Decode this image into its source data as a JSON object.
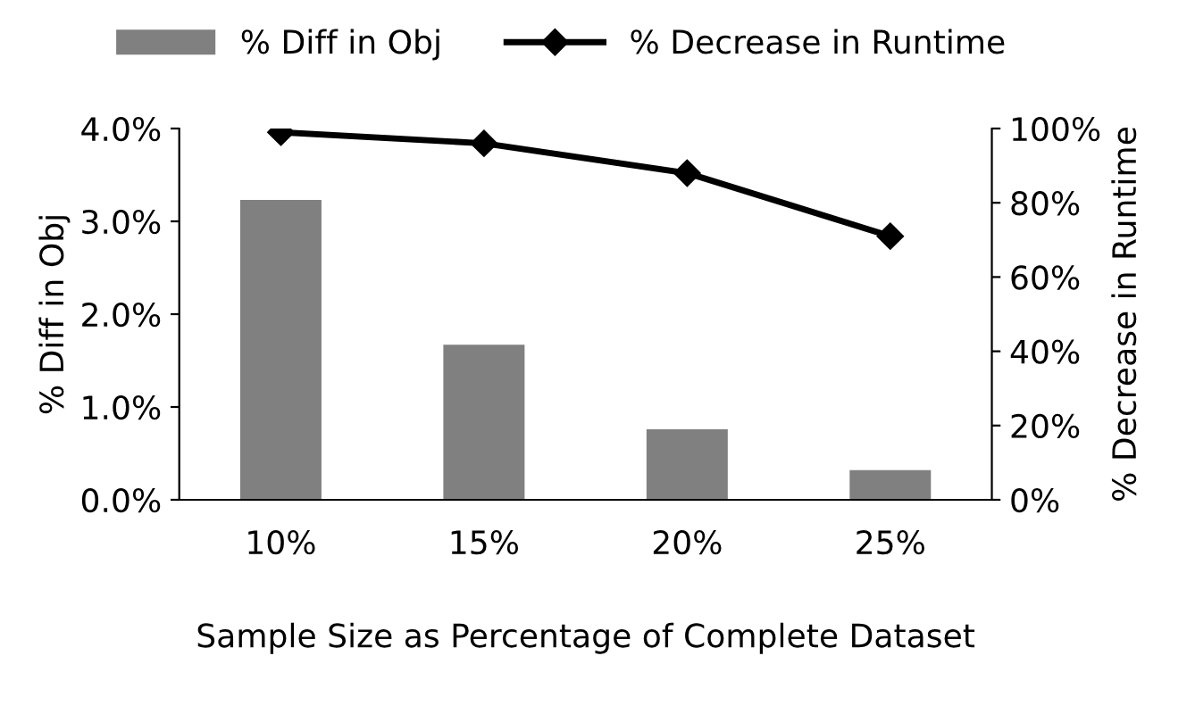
{
  "chart_data": {
    "type": "bar",
    "xlabel": "Sample Size as Percentage of Complete Dataset",
    "ylabel": "% Diff in Obj",
    "y2label": "% Decrease in Runtime",
    "categories": [
      "10%",
      "15%",
      "20%",
      "25%"
    ],
    "series": [
      {
        "name": "% Diff in Obj",
        "color": "#808080",
        "values": [
          3.23,
          1.67,
          0.76,
          0.32
        ]
      },
      {
        "name": "% Decrease in Runtime",
        "type": "line",
        "axis": "y2",
        "color": "#000000",
        "marker": "diamond",
        "values": [
          99,
          96,
          88,
          71
        ]
      }
    ],
    "ylim": [
      0,
      4
    ],
    "yticks": [
      {
        "value": 0,
        "label": "0.0%"
      },
      {
        "value": 1,
        "label": "1.0%"
      },
      {
        "value": 2,
        "label": "2.0%"
      },
      {
        "value": 3,
        "label": "3.0%"
      },
      {
        "value": 4,
        "label": "4.0%"
      }
    ],
    "y2lim": [
      0,
      100
    ],
    "y2ticks": [
      {
        "value": 0,
        "label": "0%"
      },
      {
        "value": 20,
        "label": "20%"
      },
      {
        "value": 40,
        "label": "40%"
      },
      {
        "value": 60,
        "label": "60%"
      },
      {
        "value": 80,
        "label": "80%"
      },
      {
        "value": 100,
        "label": "100%"
      }
    ],
    "grid": false,
    "legend": "top"
  }
}
